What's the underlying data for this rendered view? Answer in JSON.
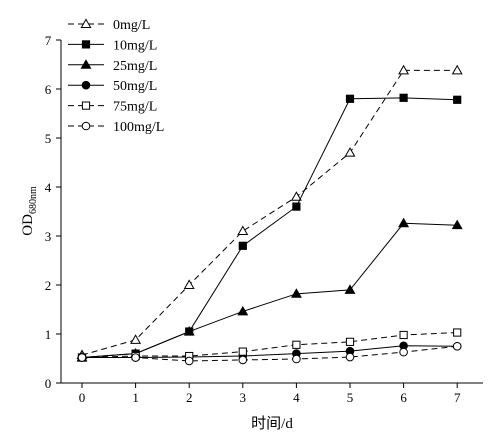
{
  "chart_data": {
    "type": "line",
    "x": [
      0,
      1,
      2,
      3,
      4,
      5,
      6,
      7
    ],
    "xlabel": "时间/d",
    "ylabel_main": "OD",
    "ylabel_sub": "680nm",
    "xlim": [
      -0.5,
      7.5
    ],
    "ylim": [
      0,
      7
    ],
    "xticks": [
      "0",
      "1",
      "2",
      "3",
      "4",
      "5",
      "6",
      "7"
    ],
    "yticks": [
      "0",
      "1",
      "2",
      "3",
      "4",
      "5",
      "6",
      "7"
    ],
    "legend_position": "top-left",
    "grid": false,
    "series": [
      {
        "name": "0mg/L",
        "marker": "triangle-open",
        "dash": "dashed",
        "values": [
          0.57,
          0.88,
          2.0,
          3.1,
          3.8,
          4.7,
          6.38,
          6.38
        ]
      },
      {
        "name": "10mg/L",
        "marker": "square-filled",
        "dash": "solid",
        "values": [
          0.52,
          0.6,
          1.05,
          2.8,
          3.6,
          5.8,
          5.82,
          5.78
        ]
      },
      {
        "name": "25mg/L",
        "marker": "triangle-filled",
        "dash": "solid",
        "values": [
          0.52,
          0.6,
          1.05,
          1.46,
          1.82,
          1.9,
          3.26,
          3.22
        ]
      },
      {
        "name": "50mg/L",
        "marker": "circle-filled",
        "dash": "solid",
        "values": [
          0.52,
          0.52,
          0.53,
          0.55,
          0.6,
          0.65,
          0.76,
          0.75
        ]
      },
      {
        "name": "75mg/L",
        "marker": "square-open",
        "dash": "dashed",
        "values": [
          0.52,
          0.55,
          0.55,
          0.64,
          0.78,
          0.84,
          0.98,
          1.03
        ]
      },
      {
        "name": "100mg/L",
        "marker": "circle-open",
        "dash": "dashed",
        "values": [
          0.52,
          0.52,
          0.45,
          0.47,
          0.49,
          0.53,
          0.63,
          0.75
        ]
      }
    ]
  }
}
